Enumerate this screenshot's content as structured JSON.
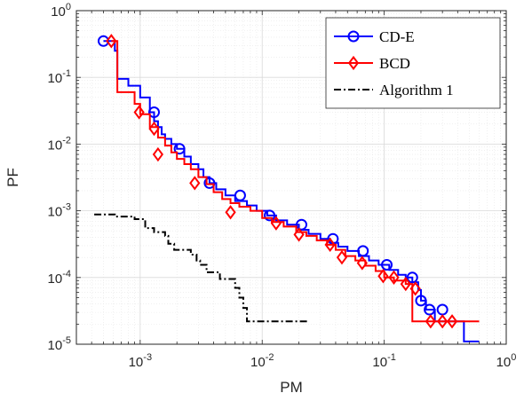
{
  "chart_data": {
    "type": "line",
    "title": "",
    "xlabel": "PM",
    "ylabel": "PF",
    "xscale": "log",
    "yscale": "log",
    "xlim": [
      0.0003,
      1
    ],
    "ylim": [
      1e-05,
      1
    ],
    "grid": true,
    "minor_grid": true,
    "legend_position": "top-right",
    "x_ticks": [
      {
        "value": 0.001,
        "base": "10",
        "exp": "-3"
      },
      {
        "value": 0.01,
        "base": "10",
        "exp": "-2"
      },
      {
        "value": 0.1,
        "base": "10",
        "exp": "-1"
      },
      {
        "value": 1,
        "base": "10",
        "exp": "0"
      }
    ],
    "y_ticks": [
      {
        "value": 1e-05,
        "base": "10",
        "exp": "-5"
      },
      {
        "value": 0.0001,
        "base": "10",
        "exp": "-4"
      },
      {
        "value": 0.001,
        "base": "10",
        "exp": "-3"
      },
      {
        "value": 0.01,
        "base": "10",
        "exp": "-2"
      },
      {
        "value": 0.1,
        "base": "10",
        "exp": "-1"
      },
      {
        "value": 1,
        "base": "10",
        "exp": "0"
      }
    ],
    "series": [
      {
        "name": "CD-E",
        "color": "#0000ff",
        "marker": "circle",
        "dash": "solid",
        "points": [
          [
            0.0005,
            0.35
          ],
          [
            0.00062,
            0.35
          ],
          [
            0.00062,
            0.25
          ],
          [
            0.00065,
            0.25
          ],
          [
            0.00065,
            0.095
          ],
          [
            0.0008,
            0.095
          ],
          [
            0.0008,
            0.075
          ],
          [
            0.001,
            0.075
          ],
          [
            0.001,
            0.05
          ],
          [
            0.0012,
            0.05
          ],
          [
            0.0012,
            0.03
          ],
          [
            0.0013,
            0.03
          ],
          [
            0.0013,
            0.022
          ],
          [
            0.0014,
            0.022
          ],
          [
            0.0014,
            0.018
          ],
          [
            0.0015,
            0.018
          ],
          [
            0.0015,
            0.014
          ],
          [
            0.0016,
            0.014
          ],
          [
            0.0016,
            0.012
          ],
          [
            0.0018,
            0.012
          ],
          [
            0.0018,
            0.01
          ],
          [
            0.002,
            0.01
          ],
          [
            0.002,
            0.0085
          ],
          [
            0.0023,
            0.0085
          ],
          [
            0.0023,
            0.0065
          ],
          [
            0.0026,
            0.0065
          ],
          [
            0.0026,
            0.005
          ],
          [
            0.003,
            0.005
          ],
          [
            0.003,
            0.0042
          ],
          [
            0.0033,
            0.0042
          ],
          [
            0.0033,
            0.0032
          ],
          [
            0.0037,
            0.0032
          ],
          [
            0.0037,
            0.0026
          ],
          [
            0.0042,
            0.0026
          ],
          [
            0.0042,
            0.0021
          ],
          [
            0.005,
            0.0021
          ],
          [
            0.005,
            0.0017
          ],
          [
            0.006,
            0.0017
          ],
          [
            0.006,
            0.0014
          ],
          [
            0.0075,
            0.0014
          ],
          [
            0.0075,
            0.0012
          ],
          [
            0.009,
            0.0012
          ],
          [
            0.009,
            0.001
          ],
          [
            0.011,
            0.001
          ],
          [
            0.011,
            0.00085
          ],
          [
            0.013,
            0.00085
          ],
          [
            0.013,
            0.00072
          ],
          [
            0.016,
            0.00072
          ],
          [
            0.016,
            0.00062
          ],
          [
            0.02,
            0.00062
          ],
          [
            0.02,
            0.00052
          ],
          [
            0.024,
            0.00052
          ],
          [
            0.024,
            0.00045
          ],
          [
            0.03,
            0.00045
          ],
          [
            0.03,
            0.00038
          ],
          [
            0.036,
            0.00038
          ],
          [
            0.036,
            0.00033
          ],
          [
            0.042,
            0.00033
          ],
          [
            0.042,
            0.00029
          ],
          [
            0.05,
            0.00029
          ],
          [
            0.05,
            0.00025
          ],
          [
            0.062,
            0.00025
          ],
          [
            0.062,
            0.00021
          ],
          [
            0.075,
            0.00021
          ],
          [
            0.075,
            0.00018
          ],
          [
            0.09,
            0.00018
          ],
          [
            0.09,
            0.000155
          ],
          [
            0.11,
            0.000155
          ],
          [
            0.11,
            0.00013
          ],
          [
            0.13,
            0.00013
          ],
          [
            0.13,
            0.00011
          ],
          [
            0.15,
            0.00011
          ],
          [
            0.15,
            0.0001
          ],
          [
            0.17,
            0.0001
          ],
          [
            0.17,
            8.5e-05
          ],
          [
            0.19,
            8.5e-05
          ],
          [
            0.19,
            6.5e-05
          ],
          [
            0.2,
            6.5e-05
          ],
          [
            0.2,
            4.5e-05
          ],
          [
            0.22,
            4.5e-05
          ],
          [
            0.22,
            3.3e-05
          ],
          [
            0.26,
            3.3e-05
          ],
          [
            0.26,
            2.2e-05
          ],
          [
            0.45,
            2.2e-05
          ],
          [
            0.45,
            1.1e-05
          ],
          [
            0.6,
            1.1e-05
          ]
        ],
        "marker_points": [
          [
            0.0005,
            0.35
          ],
          [
            0.0013,
            0.03
          ],
          [
            0.0021,
            0.0085
          ],
          [
            0.0037,
            0.0026
          ],
          [
            0.0066,
            0.0017
          ],
          [
            0.0115,
            0.00085
          ],
          [
            0.021,
            0.00062
          ],
          [
            0.038,
            0.00038
          ],
          [
            0.067,
            0.00025
          ],
          [
            0.105,
            0.000155
          ],
          [
            0.17,
            0.0001
          ],
          [
            0.2,
            4.5e-05
          ],
          [
            0.235,
            3.3e-05
          ],
          [
            0.3,
            3.3e-05
          ]
        ]
      },
      {
        "name": "BCD",
        "color": "#ff0000",
        "marker": "diamond",
        "dash": "solid",
        "points": [
          [
            0.00058,
            0.35
          ],
          [
            0.00065,
            0.35
          ],
          [
            0.00065,
            0.06
          ],
          [
            0.0009,
            0.06
          ],
          [
            0.0009,
            0.04
          ],
          [
            0.001,
            0.04
          ],
          [
            0.001,
            0.028
          ],
          [
            0.0012,
            0.028
          ],
          [
            0.0012,
            0.018
          ],
          [
            0.0014,
            0.018
          ],
          [
            0.0014,
            0.0125
          ],
          [
            0.0016,
            0.0125
          ],
          [
            0.0016,
            0.0095
          ],
          [
            0.0018,
            0.0095
          ],
          [
            0.0018,
            0.0075
          ],
          [
            0.002,
            0.0075
          ],
          [
            0.002,
            0.006
          ],
          [
            0.0023,
            0.006
          ],
          [
            0.0023,
            0.005
          ],
          [
            0.0026,
            0.005
          ],
          [
            0.0026,
            0.0042
          ],
          [
            0.003,
            0.0042
          ],
          [
            0.003,
            0.0032
          ],
          [
            0.0035,
            0.0032
          ],
          [
            0.0035,
            0.0025
          ],
          [
            0.004,
            0.0025
          ],
          [
            0.004,
            0.0019
          ],
          [
            0.0047,
            0.0019
          ],
          [
            0.0047,
            0.0015
          ],
          [
            0.0055,
            0.0015
          ],
          [
            0.0055,
            0.0013
          ],
          [
            0.0065,
            0.0013
          ],
          [
            0.0065,
            0.00115
          ],
          [
            0.008,
            0.00115
          ],
          [
            0.008,
            0.001
          ],
          [
            0.01,
            0.001
          ],
          [
            0.01,
            0.00078
          ],
          [
            0.012,
            0.00078
          ],
          [
            0.012,
            0.00068
          ],
          [
            0.015,
            0.00068
          ],
          [
            0.015,
            0.00058
          ],
          [
            0.019,
            0.00058
          ],
          [
            0.019,
            0.00048
          ],
          [
            0.023,
            0.00048
          ],
          [
            0.023,
            0.00042
          ],
          [
            0.028,
            0.00042
          ],
          [
            0.028,
            0.00036
          ],
          [
            0.034,
            0.00036
          ],
          [
            0.034,
            0.00031
          ],
          [
            0.04,
            0.00031
          ],
          [
            0.04,
            0.00026
          ],
          [
            0.048,
            0.00026
          ],
          [
            0.048,
            0.00021
          ],
          [
            0.058,
            0.00021
          ],
          [
            0.058,
            0.00018
          ],
          [
            0.07,
            0.00018
          ],
          [
            0.07,
            0.00015
          ],
          [
            0.085,
            0.00015
          ],
          [
            0.085,
            0.000125
          ],
          [
            0.1,
            0.000125
          ],
          [
            0.1,
            0.0001
          ],
          [
            0.12,
            0.0001
          ],
          [
            0.12,
            9e-05
          ],
          [
            0.15,
            9e-05
          ],
          [
            0.15,
            8e-05
          ],
          [
            0.17,
            8e-05
          ],
          [
            0.17,
            2.2e-05
          ],
          [
            0.6,
            2.2e-05
          ]
        ],
        "marker_points": [
          [
            0.00058,
            0.35
          ],
          [
            0.00098,
            0.03
          ],
          [
            0.0013,
            0.017
          ],
          [
            0.0014,
            0.007
          ],
          [
            0.0028,
            0.0026
          ],
          [
            0.0055,
            0.00095
          ],
          [
            0.013,
            0.00065
          ],
          [
            0.02,
            0.00044
          ],
          [
            0.036,
            0.00031
          ],
          [
            0.045,
            0.0002
          ],
          [
            0.066,
            0.000165
          ],
          [
            0.098,
            0.000105
          ],
          [
            0.12,
            0.0001
          ],
          [
            0.15,
            8e-05
          ],
          [
            0.18,
            6.8e-05
          ],
          [
            0.24,
            2.2e-05
          ],
          [
            0.3,
            2.2e-05
          ],
          [
            0.36,
            2.2e-05
          ]
        ]
      },
      {
        "name": "Algorithm 1",
        "color": "#000000",
        "marker": "none",
        "dash": "dashdot",
        "points": [
          [
            0.00042,
            0.00088
          ],
          [
            0.00062,
            0.00088
          ],
          [
            0.00062,
            0.00082
          ],
          [
            0.0009,
            0.00082
          ],
          [
            0.0009,
            0.00075
          ],
          [
            0.0011,
            0.00075
          ],
          [
            0.0011,
            0.00055
          ],
          [
            0.0013,
            0.00055
          ],
          [
            0.0013,
            0.00048
          ],
          [
            0.0016,
            0.00048
          ],
          [
            0.0016,
            0.00042
          ],
          [
            0.0017,
            0.00042
          ],
          [
            0.0017,
            0.00032
          ],
          [
            0.0019,
            0.00032
          ],
          [
            0.0019,
            0.00026
          ],
          [
            0.0026,
            0.00026
          ],
          [
            0.0026,
            0.00022
          ],
          [
            0.0029,
            0.00022
          ],
          [
            0.0029,
            0.00018
          ],
          [
            0.0031,
            0.00018
          ],
          [
            0.0031,
            0.000155
          ],
          [
            0.0035,
            0.000155
          ],
          [
            0.0035,
            0.00012
          ],
          [
            0.0045,
            0.00012
          ],
          [
            0.0045,
            9.5e-05
          ],
          [
            0.006,
            9.5e-05
          ],
          [
            0.006,
            7e-05
          ],
          [
            0.0065,
            7e-05
          ],
          [
            0.0065,
            5e-05
          ],
          [
            0.007,
            5e-05
          ],
          [
            0.007,
            3.5e-05
          ],
          [
            0.0075,
            3.5e-05
          ],
          [
            0.0075,
            2.2e-05
          ],
          [
            0.024,
            2.2e-05
          ]
        ],
        "marker_points": []
      }
    ]
  }
}
